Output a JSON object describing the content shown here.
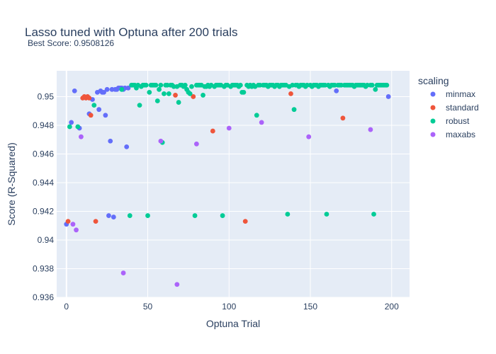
{
  "chart_data": {
    "type": "scatter",
    "title": "Lasso tuned with Optuna after 200 trials",
    "subtitle": "Best Score: 0.9508126",
    "xlabel": "Optuna Trial",
    "ylabel": "Score (R-Squared)",
    "xlim": [
      -6,
      211
    ],
    "ylim": [
      0.936,
      0.9518
    ],
    "x_ticks": [
      0,
      50,
      100,
      150,
      200
    ],
    "y_ticks": [
      0.936,
      0.938,
      0.94,
      0.942,
      0.944,
      0.946,
      0.948,
      0.95
    ],
    "grid": true,
    "legend": {
      "title": "scaling",
      "placement": "right"
    },
    "series": [
      {
        "name": "minmax",
        "color": "#636efa",
        "points": [
          [
            0,
            0.9411
          ],
          [
            3,
            0.9482
          ],
          [
            5,
            0.9504
          ],
          [
            8,
            0.9478
          ],
          [
            14,
            0.9488
          ],
          [
            16,
            0.9498
          ],
          [
            19,
            0.9503
          ],
          [
            20,
            0.9491
          ],
          [
            21,
            0.9504
          ],
          [
            22,
            0.9503
          ],
          [
            23,
            0.9503
          ],
          [
            24,
            0.9487
          ],
          [
            25,
            0.9505
          ],
          [
            26,
            0.9417
          ],
          [
            27,
            0.9469
          ],
          [
            28,
            0.9505
          ],
          [
            29,
            0.9416
          ],
          [
            30,
            0.9505
          ],
          [
            31,
            0.9505
          ],
          [
            32,
            0.9506
          ],
          [
            33,
            0.9506
          ],
          [
            34,
            0.9506
          ],
          [
            35,
            0.9505
          ],
          [
            36,
            0.9506
          ],
          [
            37,
            0.9465
          ],
          [
            38,
            0.9506
          ],
          [
            166,
            0.9504
          ],
          [
            198,
            0.95
          ]
        ]
      },
      {
        "name": "standard",
        "color": "#ef553b",
        "points": [
          [
            1,
            0.9413
          ],
          [
            10,
            0.9499
          ],
          [
            11,
            0.95
          ],
          [
            12,
            0.9499
          ],
          [
            13,
            0.95
          ],
          [
            14,
            0.9499
          ],
          [
            15,
            0.9487
          ],
          [
            18,
            0.9413
          ],
          [
            67,
            0.9501
          ],
          [
            78,
            0.95
          ],
          [
            90,
            0.9476
          ],
          [
            110,
            0.9413
          ],
          [
            138,
            0.9502
          ],
          [
            170,
            0.9485
          ]
        ]
      },
      {
        "name": "robust",
        "color": "#00cc96",
        "points": [
          [
            2,
            0.9479
          ],
          [
            7,
            0.9479
          ],
          [
            17,
            0.9494
          ],
          [
            34,
            0.9505
          ],
          [
            39,
            0.9417
          ],
          [
            40,
            0.9508
          ],
          [
            41,
            0.9508
          ],
          [
            42,
            0.9508
          ],
          [
            43,
            0.9506
          ],
          [
            44,
            0.9508
          ],
          [
            45,
            0.9494
          ],
          [
            46,
            0.9507
          ],
          [
            47,
            0.9508
          ],
          [
            48,
            0.9508
          ],
          [
            49,
            0.9508
          ],
          [
            50,
            0.9417
          ],
          [
            51,
            0.9503
          ],
          [
            52,
            0.9508
          ],
          [
            53,
            0.9508
          ],
          [
            54,
            0.9508
          ],
          [
            55,
            0.9508
          ],
          [
            56,
            0.9497
          ],
          [
            57,
            0.9505
          ],
          [
            58,
            0.9508
          ],
          [
            59,
            0.9468
          ],
          [
            60,
            0.9502
          ],
          [
            61,
            0.9508
          ],
          [
            62,
            0.9508
          ],
          [
            63,
            0.9502
          ],
          [
            64,
            0.9508
          ],
          [
            65,
            0.9508
          ],
          [
            66,
            0.9507
          ],
          [
            68,
            0.9507
          ],
          [
            69,
            0.9496
          ],
          [
            70,
            0.9508
          ],
          [
            71,
            0.9508
          ],
          [
            72,
            0.9507
          ],
          [
            73,
            0.9508
          ],
          [
            74,
            0.9505
          ],
          [
            75,
            0.9503
          ],
          [
            76,
            0.9502
          ],
          [
            77,
            0.9507
          ],
          [
            79,
            0.9417
          ],
          [
            80,
            0.9508
          ],
          [
            81,
            0.9508
          ],
          [
            82,
            0.9508
          ],
          [
            83,
            0.9508
          ],
          [
            84,
            0.9501
          ],
          [
            85,
            0.9507
          ],
          [
            86,
            0.9507
          ],
          [
            87,
            0.9508
          ],
          [
            88,
            0.9507
          ],
          [
            89,
            0.9508
          ],
          [
            91,
            0.9507
          ],
          [
            92,
            0.9508
          ],
          [
            93,
            0.9508
          ],
          [
            94,
            0.9508
          ],
          [
            95,
            0.9508
          ],
          [
            96,
            0.9417
          ],
          [
            97,
            0.9507
          ],
          [
            98,
            0.9508
          ],
          [
            99,
            0.9508
          ],
          [
            101,
            0.9507
          ],
          [
            102,
            0.9508
          ],
          [
            103,
            0.9508
          ],
          [
            104,
            0.9508
          ],
          [
            105,
            0.9508
          ],
          [
            106,
            0.9507
          ],
          [
            107,
            0.9508
          ],
          [
            108,
            0.9503
          ],
          [
            109,
            0.9503
          ],
          [
            111,
            0.9508
          ],
          [
            112,
            0.9507
          ],
          [
            113,
            0.9508
          ],
          [
            114,
            0.9507
          ],
          [
            115,
            0.9508
          ],
          [
            116,
            0.9507
          ],
          [
            117,
            0.9487
          ],
          [
            118,
            0.9508
          ],
          [
            119,
            0.9508
          ],
          [
            121,
            0.9508
          ],
          [
            122,
            0.9508
          ],
          [
            123,
            0.9508
          ],
          [
            124,
            0.9507
          ],
          [
            125,
            0.9508
          ],
          [
            126,
            0.9508
          ],
          [
            127,
            0.9508
          ],
          [
            128,
            0.9507
          ],
          [
            129,
            0.9508
          ],
          [
            130,
            0.9508
          ],
          [
            131,
            0.9507
          ],
          [
            132,
            0.9508
          ],
          [
            133,
            0.9508
          ],
          [
            134,
            0.9508
          ],
          [
            135,
            0.9508
          ],
          [
            136,
            0.9418
          ],
          [
            137,
            0.9507
          ],
          [
            139,
            0.9508
          ],
          [
            140,
            0.9491
          ],
          [
            141,
            0.9508
          ],
          [
            142,
            0.9508
          ],
          [
            143,
            0.9507
          ],
          [
            144,
            0.9508
          ],
          [
            145,
            0.9508
          ],
          [
            146,
            0.9508
          ],
          [
            147,
            0.9507
          ],
          [
            148,
            0.9508
          ],
          [
            150,
            0.9508
          ],
          [
            151,
            0.9507
          ],
          [
            152,
            0.9508
          ],
          [
            153,
            0.9508
          ],
          [
            154,
            0.9508
          ],
          [
            155,
            0.9507
          ],
          [
            156,
            0.9508
          ],
          [
            157,
            0.9508
          ],
          [
            158,
            0.9508
          ],
          [
            159,
            0.9508
          ],
          [
            160,
            0.9418
          ],
          [
            161,
            0.9508
          ],
          [
            162,
            0.9507
          ],
          [
            163,
            0.9508
          ],
          [
            164,
            0.9508
          ],
          [
            165,
            0.9508
          ],
          [
            167,
            0.9508
          ],
          [
            168,
            0.9508
          ],
          [
            169,
            0.9508
          ],
          [
            171,
            0.9508
          ],
          [
            172,
            0.9508
          ],
          [
            173,
            0.9508
          ],
          [
            174,
            0.9508
          ],
          [
            175,
            0.9508
          ],
          [
            176,
            0.9508
          ],
          [
            177,
            0.9507
          ],
          [
            178,
            0.9508
          ],
          [
            179,
            0.9508
          ],
          [
            180,
            0.9508
          ],
          [
            181,
            0.9508
          ],
          [
            182,
            0.9508
          ],
          [
            183,
            0.9508
          ],
          [
            184,
            0.9507
          ],
          [
            185,
            0.9508
          ],
          [
            187,
            0.9508
          ],
          [
            188,
            0.9508
          ],
          [
            189,
            0.9418
          ],
          [
            190,
            0.9505
          ],
          [
            191,
            0.9508
          ],
          [
            192,
            0.9508
          ],
          [
            193,
            0.9508
          ],
          [
            194,
            0.9508
          ],
          [
            195,
            0.9508
          ],
          [
            196,
            0.9508
          ],
          [
            197,
            0.9508
          ]
        ]
      },
      {
        "name": "maxabs",
        "color": "#ab63fa",
        "points": [
          [
            4,
            0.9411
          ],
          [
            6,
            0.9407
          ],
          [
            9,
            0.9472
          ],
          [
            35,
            0.9377
          ],
          [
            58,
            0.9469
          ],
          [
            68,
            0.9369
          ],
          [
            80,
            0.9467
          ],
          [
            100,
            0.9478
          ],
          [
            120,
            0.9482
          ],
          [
            149,
            0.9472
          ],
          [
            187,
            0.9477
          ]
        ]
      }
    ]
  }
}
